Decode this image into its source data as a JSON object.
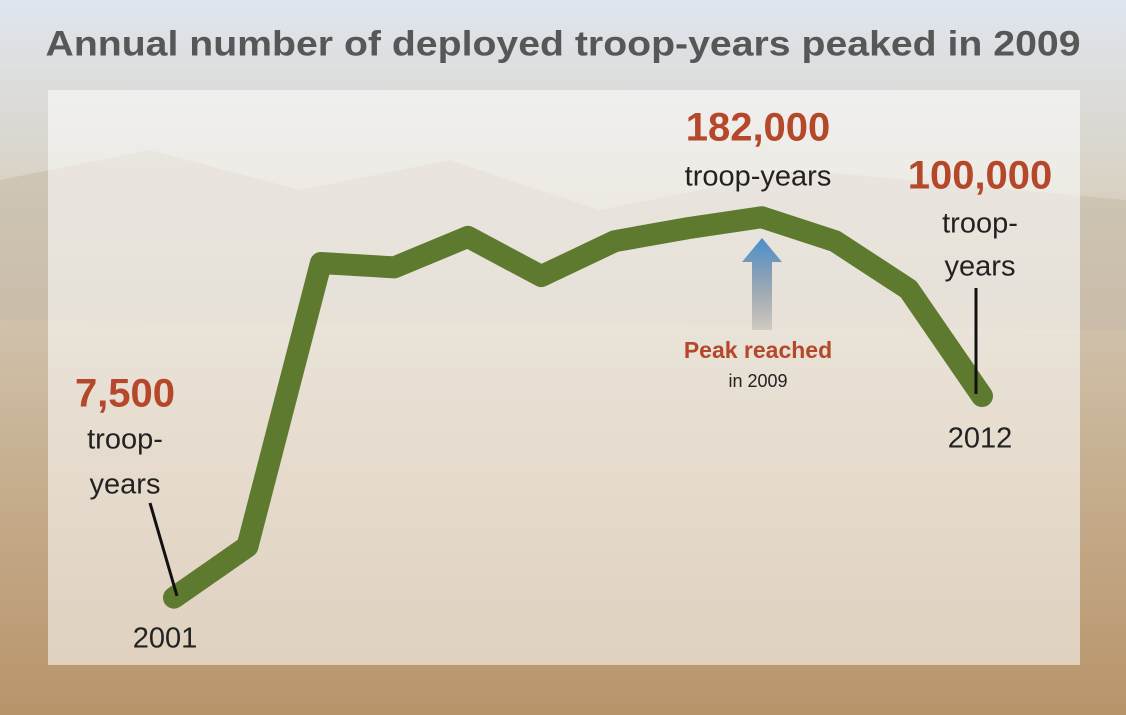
{
  "chart_data": {
    "type": "line",
    "title": "Annual number of deployed troop-years peaked in 2009",
    "categories": [
      "2001",
      null,
      null,
      null,
      null,
      null,
      null,
      null,
      null,
      null,
      null,
      "2012"
    ],
    "values": [
      7500,
      31000,
      161000,
      159000,
      173000,
      155000,
      171000,
      177000,
      182000,
      171000,
      149000,
      100000
    ],
    "value_labels": [
      "7,500",
      null,
      null,
      null,
      null,
      null,
      null,
      null,
      "182,000",
      null,
      null,
      "100,000"
    ],
    "color": "#5e7a2f",
    "ylim": [
      0,
      200000
    ],
    "annotations": {
      "start_unit": [
        "troop-",
        "years"
      ],
      "peak_unit": "troop-years",
      "end_unit": [
        "troop-",
        "years"
      ],
      "peak_note": "Peak reached",
      "peak_note_sub": "in 2009"
    }
  }
}
